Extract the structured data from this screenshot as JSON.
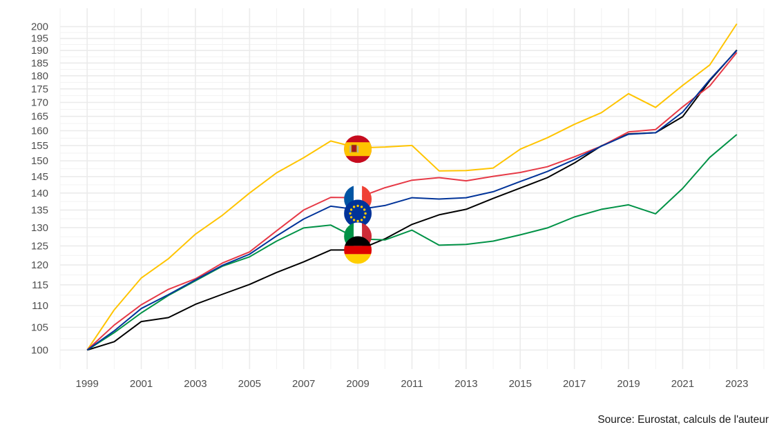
{
  "caption": "Source: Eurostat, calculs de l'auteur",
  "chart_data": {
    "type": "line",
    "y_scale": "log",
    "grid": true,
    "legend": "flag markers at 2009",
    "x": [
      1999,
      2000,
      2001,
      2002,
      2003,
      2004,
      2005,
      2006,
      2007,
      2008,
      2009,
      2010,
      2011,
      2012,
      2013,
      2014,
      2015,
      2016,
      2017,
      2018,
      2019,
      2020,
      2021,
      2022,
      2023
    ],
    "x_ticks": [
      "1999",
      "2001",
      "2003",
      "2005",
      "2007",
      "2009",
      "2011",
      "2013",
      "2015",
      "2017",
      "2019",
      "2021",
      "2023"
    ],
    "y_ticks": [
      "100",
      "105",
      "110",
      "115",
      "120",
      "125",
      "130",
      "135",
      "140",
      "145",
      "150",
      "155",
      "160",
      "165",
      "170",
      "175",
      "180",
      "185",
      "190",
      "195",
      "200"
    ],
    "ylim": [
      96,
      208
    ],
    "xlim": [
      1998,
      2024
    ],
    "series": [
      {
        "color": "#000000",
        "flag": "germany",
        "values": [
          100,
          101.8,
          106.3,
          107.2,
          110.3,
          112.7,
          115.1,
          118.1,
          120.8,
          123.9,
          123.9,
          126.9,
          130.9,
          133.6,
          135.2,
          138.4,
          141.5,
          144.7,
          149.3,
          154.9,
          158.9,
          159.3,
          164.9,
          178.1,
          190.2
        ]
      },
      {
        "color": "#009246",
        "flag": "italy",
        "values": [
          100,
          103.8,
          108.3,
          112.4,
          116.0,
          119.7,
          122.1,
          126.3,
          129.9,
          130.7,
          126.9,
          126.6,
          129.3,
          125.2,
          125.4,
          126.3,
          128.0,
          129.9,
          133.0,
          135.2,
          136.5,
          133.9,
          141.4,
          151.1,
          158.7
        ]
      },
      {
        "color": "#FFC400",
        "flag": "spain",
        "values": [
          100,
          109.0,
          116.7,
          121.6,
          128.2,
          133.5,
          140.0,
          146.2,
          151.0,
          156.5,
          154.2,
          154.5,
          155.0,
          146.8,
          146.9,
          147.7,
          153.8,
          157.6,
          162.2,
          166.3,
          173.2,
          168.2,
          176.3,
          184.2,
          201.2
        ]
      },
      {
        "color": "#E63946",
        "flag": "france",
        "values": [
          100,
          105.5,
          110.2,
          113.9,
          116.5,
          120.5,
          123.4,
          129.1,
          135.0,
          138.7,
          138.6,
          141.6,
          143.9,
          144.7,
          143.7,
          145.1,
          146.3,
          148.1,
          151.3,
          154.8,
          159.6,
          160.4,
          168.4,
          176.1,
          189.2
        ]
      },
      {
        "color": "#003399",
        "flag": "euro-area",
        "values": [
          100,
          104.2,
          109.3,
          112.6,
          116.2,
          119.9,
          122.8,
          127.7,
          132.4,
          136.1,
          135.1,
          136.3,
          138.6,
          138.2,
          138.6,
          140.4,
          143.5,
          146.6,
          150.4,
          154.8,
          158.8,
          159.3,
          166.5,
          178.5,
          190.0
        ]
      }
    ],
    "flag_positions": [
      {
        "flag": "spain",
        "x": 2009,
        "y": 153.8
      },
      {
        "flag": "france",
        "x": 2009,
        "y": 138.2
      },
      {
        "flag": "euro-area",
        "x": 2009,
        "y": 134.0
      },
      {
        "flag": "italy",
        "x": 2009,
        "y": 127.6
      },
      {
        "flag": "germany",
        "x": 2009,
        "y": 123.9
      }
    ]
  }
}
